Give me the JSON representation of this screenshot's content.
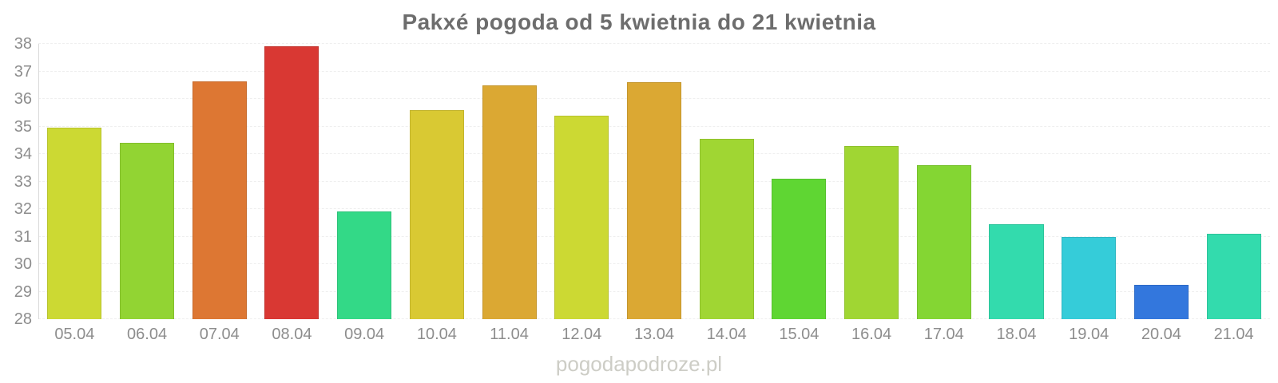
{
  "page": {
    "watermark": "pogodapodroze.pl"
  },
  "chart_data": {
    "type": "bar",
    "title": "Pakxé pogoda od 5 kwietnia do 21 kwietnia",
    "categories": [
      "05.04",
      "06.04",
      "07.04",
      "08.04",
      "09.04",
      "10.04",
      "11.04",
      "12.04",
      "13.04",
      "14.04",
      "15.04",
      "16.04",
      "17.04",
      "18.04",
      "19.04",
      "20.04",
      "21.04"
    ],
    "values": [
      34.95,
      34.4,
      36.65,
      37.9,
      31.9,
      35.6,
      36.5,
      35.4,
      36.6,
      34.55,
      33.1,
      34.3,
      33.6,
      31.45,
      31.0,
      29.25,
      31.1
    ],
    "bar_colors": [
      "#ccd933",
      "#92d433",
      "#dd7733",
      "#d93833",
      "#33d987",
      "#d9c933",
      "#dba833",
      "#ccd933",
      "#dba833",
      "#a0d633",
      "#5fd633",
      "#a0d633",
      "#84d633",
      "#33dbad",
      "#35ccd9",
      "#3377dd",
      "#33dbad"
    ],
    "xlabel": "",
    "ylabel": "",
    "ylim": [
      28,
      38
    ],
    "yticks": [
      28,
      29,
      30,
      31,
      32,
      33,
      34,
      35,
      36,
      37,
      38
    ],
    "grid": true,
    "legend": false,
    "colors": {
      "title_text": "#6d6d6d",
      "axis_text": "#8d8d8d",
      "gridline": "#efefef",
      "axis_line": "#d9d9d9",
      "watermark_text": "#cdcdc6",
      "background": "#ffffff"
    }
  }
}
